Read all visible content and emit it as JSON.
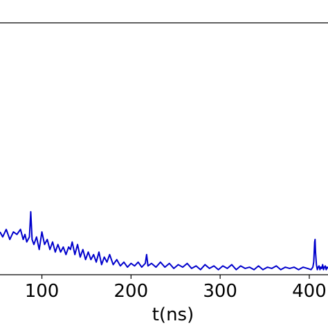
{
  "chart_data": {
    "type": "line",
    "title": "",
    "xlabel": "t(ns)",
    "ylabel": "",
    "xlim": [
      53,
      421
    ],
    "ylim": [
      0,
      1
    ],
    "grid": false,
    "legend": "none",
    "x_ticks": [
      {
        "value": 100,
        "label": "100"
      },
      {
        "value": 200,
        "label": "200"
      },
      {
        "value": 300,
        "label": "300"
      },
      {
        "value": 400,
        "label": "400"
      }
    ],
    "series": [
      {
        "color": "#0000cc",
        "x": [
          53,
          56,
          60,
          64,
          68,
          72,
          76,
          79,
          81,
          83,
          86,
          87.5,
          89,
          91,
          94,
          97,
          100,
          103,
          106,
          109,
          112,
          115,
          118,
          121,
          124,
          127,
          130,
          132,
          134,
          137,
          140,
          143,
          146,
          149,
          152,
          155,
          158,
          161,
          164,
          167,
          170,
          173,
          176,
          180,
          184,
          188,
          192,
          196,
          200,
          204,
          208,
          212,
          216,
          217.5,
          219,
          223,
          228,
          233,
          238,
          243,
          248,
          253,
          258,
          263,
          268,
          273,
          278,
          283,
          288,
          293,
          298,
          303,
          308,
          313,
          318,
          323,
          328,
          333,
          338,
          343,
          348,
          353,
          358,
          363,
          368,
          373,
          378,
          383,
          388,
          393,
          398,
          402,
          404,
          405,
          406,
          406.5,
          407,
          408,
          409,
          410,
          411,
          412,
          413,
          414,
          415,
          416,
          417,
          418,
          419,
          420,
          421
        ],
        "y": [
          0.17,
          0.15,
          0.18,
          0.14,
          0.17,
          0.16,
          0.18,
          0.14,
          0.16,
          0.13,
          0.15,
          0.25,
          0.14,
          0.12,
          0.15,
          0.1,
          0.17,
          0.12,
          0.14,
          0.1,
          0.13,
          0.09,
          0.12,
          0.09,
          0.11,
          0.08,
          0.11,
          0.1,
          0.13,
          0.08,
          0.12,
          0.07,
          0.1,
          0.06,
          0.09,
          0.06,
          0.08,
          0.05,
          0.09,
          0.04,
          0.07,
          0.05,
          0.08,
          0.04,
          0.06,
          0.035,
          0.05,
          0.03,
          0.045,
          0.035,
          0.05,
          0.03,
          0.045,
          0.08,
          0.035,
          0.045,
          0.03,
          0.05,
          0.03,
          0.045,
          0.025,
          0.04,
          0.03,
          0.045,
          0.025,
          0.035,
          0.02,
          0.04,
          0.025,
          0.035,
          0.02,
          0.035,
          0.025,
          0.04,
          0.02,
          0.035,
          0.025,
          0.03,
          0.02,
          0.035,
          0.02,
          0.03,
          0.025,
          0.035,
          0.02,
          0.03,
          0.025,
          0.03,
          0.02,
          0.03,
          0.025,
          0.02,
          0.03,
          0.05,
          0.13,
          0.14,
          0.09,
          0.04,
          0.02,
          0.03,
          0.035,
          0.02,
          0.03,
          0.025,
          0.04,
          0.02,
          0.03,
          0.035,
          0.02,
          0.03,
          0.025
        ]
      }
    ]
  }
}
